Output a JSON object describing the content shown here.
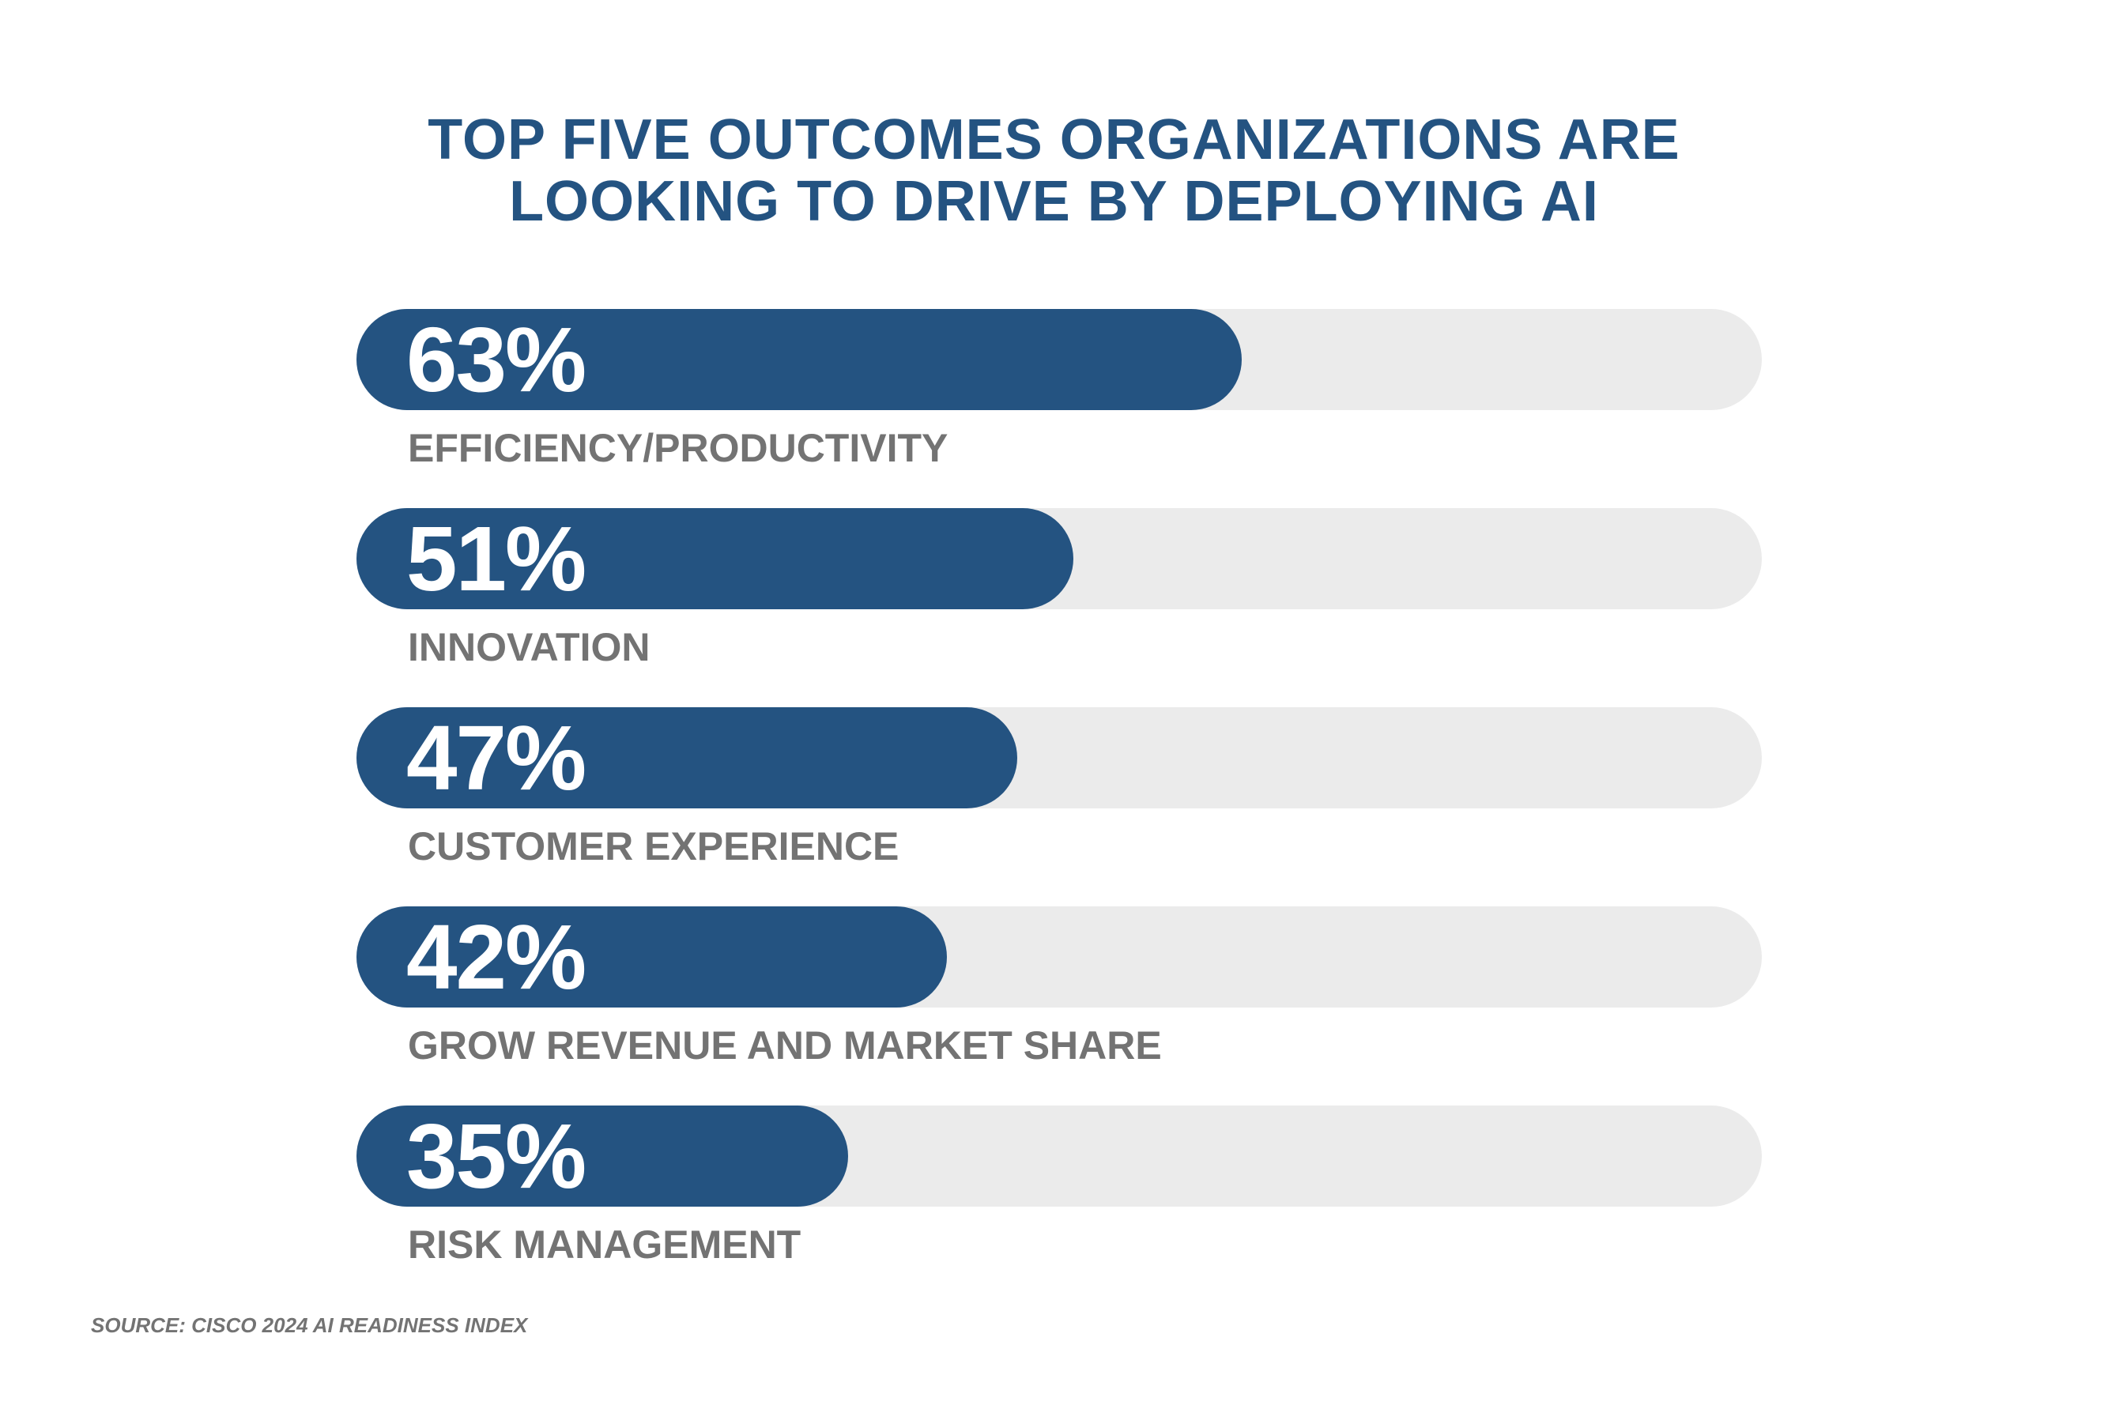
{
  "chart_data": {
    "type": "bar",
    "orientation": "horizontal",
    "title": "TOP FIVE OUTCOMES ORGANIZATIONS ARE LOOKING TO DRIVE BY DEPLOYING AI",
    "title_lines": [
      "TOP FIVE OUTCOMES ORGANIZATIONS ARE",
      "LOOKING TO DRIVE BY DEPLOYING AI"
    ],
    "categories": [
      "EFFICIENCY/PRODUCTIVITY",
      "INNOVATION",
      "CUSTOMER EXPERIENCE",
      "GROW REVENUE AND MARKET SHARE",
      "RISK MANAGEMENT"
    ],
    "values": [
      63,
      51,
      47,
      42,
      35
    ],
    "value_labels": [
      "63%",
      "51%",
      "47%",
      "42%",
      "35%"
    ],
    "xlim": [
      0,
      100
    ],
    "xlabel": "",
    "ylabel": "",
    "grid": false,
    "source": "SOURCE: CISCO 2024 AI READINESS INDEX",
    "colors": {
      "fill": "#245381",
      "track": "#ebebeb",
      "label": "#737373",
      "title": "#245381"
    }
  }
}
